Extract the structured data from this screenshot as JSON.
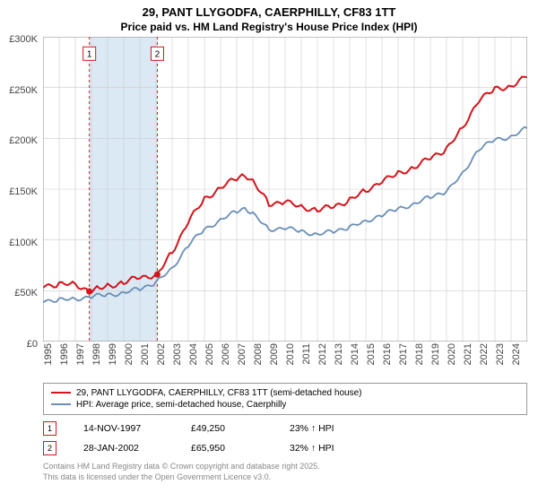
{
  "title_line1": "29, PANT LLYGODFA, CAERPHILLY, CF83 1TT",
  "title_line2": "Price paid vs. HM Land Registry's House Price Index (HPI)",
  "chart": {
    "type": "line",
    "background_color": "#ffffff",
    "grid_color": "#cccccc",
    "ylim": [
      0,
      300000
    ],
    "ytick_step": 50000,
    "y_ticks": [
      "£0",
      "£50K",
      "£100K",
      "£150K",
      "£200K",
      "£250K",
      "£300K"
    ],
    "x_years": [
      1995,
      1996,
      1997,
      1998,
      1999,
      2000,
      2001,
      2002,
      2003,
      2004,
      2005,
      2006,
      2007,
      2008,
      2009,
      2010,
      2011,
      2012,
      2013,
      2014,
      2015,
      2016,
      2017,
      2018,
      2019,
      2020,
      2021,
      2022,
      2023,
      2024
    ],
    "x_range": [
      1995,
      2025
    ],
    "band_color": "#dbe9f4",
    "band_start": 1997.87,
    "band_end": 2002.08,
    "series": [
      {
        "name": "price_paid",
        "label": "29, PANT LLYGODFA, CAERPHILLY, CF83 1TT (semi-detached house)",
        "color": "#d4151c",
        "line_width": 2,
        "points": [
          [
            1995,
            55000
          ],
          [
            1996,
            56000
          ],
          [
            1997,
            57000
          ],
          [
            1997.87,
            49250
          ],
          [
            1998.5,
            52000
          ],
          [
            1999,
            55000
          ],
          [
            2000,
            58000
          ],
          [
            2001,
            63000
          ],
          [
            2002.08,
            65950
          ],
          [
            2003,
            88000
          ],
          [
            2004,
            118000
          ],
          [
            2005,
            140000
          ],
          [
            2006,
            152000
          ],
          [
            2007,
            160000
          ],
          [
            2007.5,
            165000
          ],
          [
            2008,
            158000
          ],
          [
            2009,
            135000
          ],
          [
            2010,
            138000
          ],
          [
            2011,
            132000
          ],
          [
            2012,
            130000
          ],
          [
            2013,
            132000
          ],
          [
            2014,
            140000
          ],
          [
            2015,
            148000
          ],
          [
            2016,
            158000
          ],
          [
            2017,
            165000
          ],
          [
            2018,
            172000
          ],
          [
            2019,
            180000
          ],
          [
            2020,
            190000
          ],
          [
            2021,
            210000
          ],
          [
            2022,
            238000
          ],
          [
            2023,
            248000
          ],
          [
            2024,
            252000
          ],
          [
            2025,
            260000
          ]
        ]
      },
      {
        "name": "hpi",
        "label": "HPI: Average price, semi-detached house, Caerphilly",
        "color": "#6a8fb8",
        "line_width": 1.8,
        "points": [
          [
            1995,
            40000
          ],
          [
            1996,
            41000
          ],
          [
            1997,
            42000
          ],
          [
            1998,
            44000
          ],
          [
            1999,
            46000
          ],
          [
            2000,
            48000
          ],
          [
            2001,
            52000
          ],
          [
            2002,
            58000
          ],
          [
            2003,
            72000
          ],
          [
            2004,
            95000
          ],
          [
            2005,
            110000
          ],
          [
            2006,
            120000
          ],
          [
            2007,
            128000
          ],
          [
            2007.5,
            132000
          ],
          [
            2008,
            126000
          ],
          [
            2009,
            110000
          ],
          [
            2010,
            112000
          ],
          [
            2011,
            108000
          ],
          [
            2012,
            106000
          ],
          [
            2013,
            108000
          ],
          [
            2014,
            113000
          ],
          [
            2015,
            118000
          ],
          [
            2016,
            125000
          ],
          [
            2017,
            130000
          ],
          [
            2018,
            136000
          ],
          [
            2019,
            142000
          ],
          [
            2020,
            148000
          ],
          [
            2021,
            165000
          ],
          [
            2022,
            190000
          ],
          [
            2023,
            198000
          ],
          [
            2024,
            202000
          ],
          [
            2025,
            210000
          ]
        ]
      }
    ],
    "sale_markers": [
      {
        "index": "1",
        "x": 1997.87,
        "y": 49250,
        "color": "#d4151c"
      },
      {
        "index": "2",
        "x": 2002.08,
        "y": 65950,
        "color": "#d4151c"
      }
    ],
    "box_markers": [
      {
        "index": "1",
        "x": 1997.87,
        "y_top": 290000,
        "color": "#d4151c"
      },
      {
        "index": "2",
        "x": 2002.08,
        "y_top": 290000,
        "color": "#d4151c"
      }
    ]
  },
  "legend": {
    "series1_label": "29, PANT LLYGODFA, CAERPHILLY, CF83 1TT (semi-detached house)",
    "series1_color": "#d4151c",
    "series2_label": "HPI: Average price, semi-detached house, Caerphilly",
    "series2_color": "#6a8fb8"
  },
  "sales": [
    {
      "index": "1",
      "date": "14-NOV-1997",
      "price": "£49,250",
      "diff": "23% ↑ HPI",
      "color": "#d4151c"
    },
    {
      "index": "2",
      "date": "28-JAN-2002",
      "price": "£65,950",
      "diff": "32% ↑ HPI",
      "color": "#d4151c"
    }
  ],
  "attribution_line1": "Contains HM Land Registry data © Crown copyright and database right 2025.",
  "attribution_line2": "This data is licensed under the Open Government Licence v3.0."
}
